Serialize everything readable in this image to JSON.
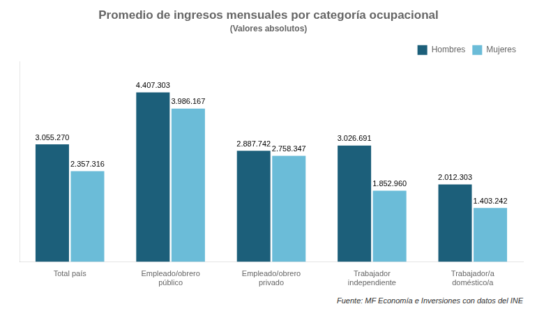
{
  "chart_data": {
    "type": "bar",
    "title": "Promedio de ingresos mensuales por categoría ocupacional",
    "subtitle": "(Valores absolutos)",
    "footer": "Fuente: MF Economía e Inversiones con datos del INE",
    "categories": [
      "Total país",
      "Empleado/obrero\npúblico",
      "Empleado/obrero\nprivado",
      "Trabajador\nindependiente",
      "Trabajador/a\ndoméstico/a"
    ],
    "series": [
      {
        "name": "Hombres",
        "color": "#1c5f7a",
        "values": [
          3055270,
          4407303,
          2887742,
          3026691,
          2012303
        ],
        "value_labels": [
          "3.055.270",
          "4.407.303",
          "2.887.742",
          "3.026.691",
          "2.012.303"
        ]
      },
      {
        "name": "Mujeres",
        "color": "#6bbcd8",
        "values": [
          2357316,
          3986167,
          2758347,
          1852960,
          1403242
        ],
        "value_labels": [
          "2.357.316",
          "3.986.167",
          "2.758.347",
          "1.852.960",
          "1.403.242"
        ]
      }
    ],
    "ylim": [
      0,
      5200000
    ],
    "grid": false,
    "legend": "upper right",
    "data_labels": true,
    "tick_labels": "x"
  }
}
